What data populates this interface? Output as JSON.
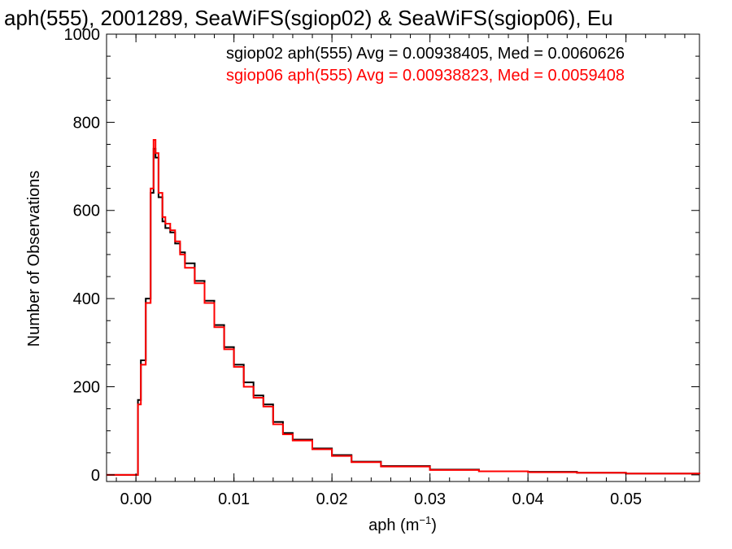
{
  "chart_data": {
    "type": "line",
    "title": "aph(555), 2001289, SeaWiFS(sgiop02) & SeaWiFS(sgiop06), Eu",
    "xlabel": "aph (m",
    "xlabel_sup": "−1",
    "xlabel_end": ")",
    "ylabel": "Number of Observations",
    "xlim": [
      -0.003,
      0.0575
    ],
    "ylim": [
      -15,
      1000
    ],
    "xticks": [
      0.0,
      0.01,
      0.02,
      0.03,
      0.04,
      0.05
    ],
    "xtick_labels": [
      "0.00",
      "0.01",
      "0.02",
      "0.03",
      "0.04",
      "0.05"
    ],
    "yticks": [
      0,
      200,
      400,
      600,
      800,
      1000
    ],
    "ytick_labels": [
      "0",
      "200",
      "400",
      "600",
      "800",
      "1000"
    ],
    "legend_position": "top-right",
    "grid": false,
    "series": [
      {
        "name": "sgiop02",
        "color": "#000000",
        "legend": "sgiop02 aph(555) Avg = 0.00938405, Med = 0.0060626",
        "x": [
          -0.003,
          0.0,
          0.0002,
          0.0005,
          0.001,
          0.0015,
          0.0018,
          0.002,
          0.0023,
          0.0027,
          0.003,
          0.0035,
          0.004,
          0.0045,
          0.005,
          0.006,
          0.007,
          0.008,
          0.009,
          0.01,
          0.011,
          0.012,
          0.013,
          0.014,
          0.015,
          0.016,
          0.018,
          0.02,
          0.022,
          0.025,
          0.03,
          0.035,
          0.04,
          0.045,
          0.05,
          0.0575
        ],
        "values": [
          0,
          0,
          170,
          260,
          400,
          640,
          740,
          720,
          630,
          575,
          560,
          550,
          525,
          505,
          480,
          440,
          395,
          340,
          290,
          250,
          210,
          180,
          160,
          120,
          95,
          80,
          60,
          45,
          30,
          20,
          12,
          8,
          7,
          5,
          3,
          2
        ]
      },
      {
        "name": "sgiop06",
        "color": "#ff0000",
        "legend": "sgiop06 aph(555) Avg = 0.00938823, Med = 0.0059408",
        "x": [
          -0.003,
          0.0,
          0.0002,
          0.0005,
          0.001,
          0.0015,
          0.0018,
          0.002,
          0.0023,
          0.0027,
          0.003,
          0.0035,
          0.004,
          0.0045,
          0.005,
          0.006,
          0.007,
          0.008,
          0.009,
          0.01,
          0.011,
          0.012,
          0.013,
          0.014,
          0.015,
          0.016,
          0.018,
          0.02,
          0.022,
          0.025,
          0.03,
          0.035,
          0.04,
          0.045,
          0.05,
          0.0575
        ],
        "values": [
          0,
          0,
          160,
          250,
          390,
          650,
          760,
          730,
          640,
          585,
          570,
          555,
          530,
          500,
          470,
          435,
          390,
          335,
          285,
          245,
          200,
          175,
          155,
          115,
          92,
          78,
          58,
          43,
          29,
          19,
          11,
          8,
          6,
          5,
          3,
          2
        ]
      }
    ]
  }
}
